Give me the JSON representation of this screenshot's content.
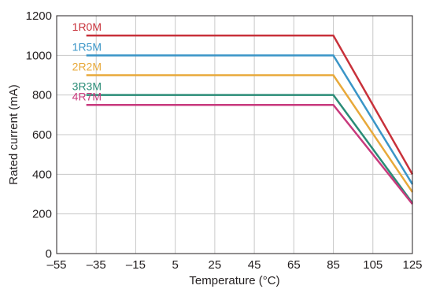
{
  "chart_data": {
    "type": "line",
    "title": "",
    "xlabel": "Temperature (°C)",
    "ylabel": "Rated current (mA)",
    "xlim": [
      -55,
      125
    ],
    "ylim": [
      0,
      1200
    ],
    "x_ticks": [
      -55,
      -35,
      -15,
      5,
      25,
      45,
      65,
      85,
      105,
      125
    ],
    "x_tick_labels": [
      "–55",
      "–35",
      "–15",
      "5",
      "25",
      "45",
      "65",
      "85",
      "105",
      "125"
    ],
    "y_ticks": [
      0,
      200,
      400,
      600,
      800,
      1000,
      1200
    ],
    "y_tick_labels": [
      "0",
      "200",
      "400",
      "600",
      "800",
      "1000",
      "1200"
    ],
    "grid": true,
    "legend": "inline-top-left",
    "series": [
      {
        "name": "1R0M",
        "color": "#c8313a",
        "x": [
          -40,
          85,
          125
        ],
        "y": [
          1100,
          1100,
          400
        ]
      },
      {
        "name": "1R5M",
        "color": "#3a95c7",
        "x": [
          -40,
          85,
          125
        ],
        "y": [
          1000,
          1000,
          350
        ]
      },
      {
        "name": "2R2M",
        "color": "#e8a93a",
        "x": [
          -40,
          85,
          125
        ],
        "y": [
          900,
          900,
          310
        ]
      },
      {
        "name": "3R3M",
        "color": "#2a8c77",
        "x": [
          -40,
          85,
          125
        ],
        "y": [
          800,
          800,
          255
        ]
      },
      {
        "name": "4R7M",
        "color": "#c83a7d",
        "x": [
          -40,
          85,
          125
        ],
        "y": [
          750,
          750,
          250
        ]
      }
    ]
  }
}
